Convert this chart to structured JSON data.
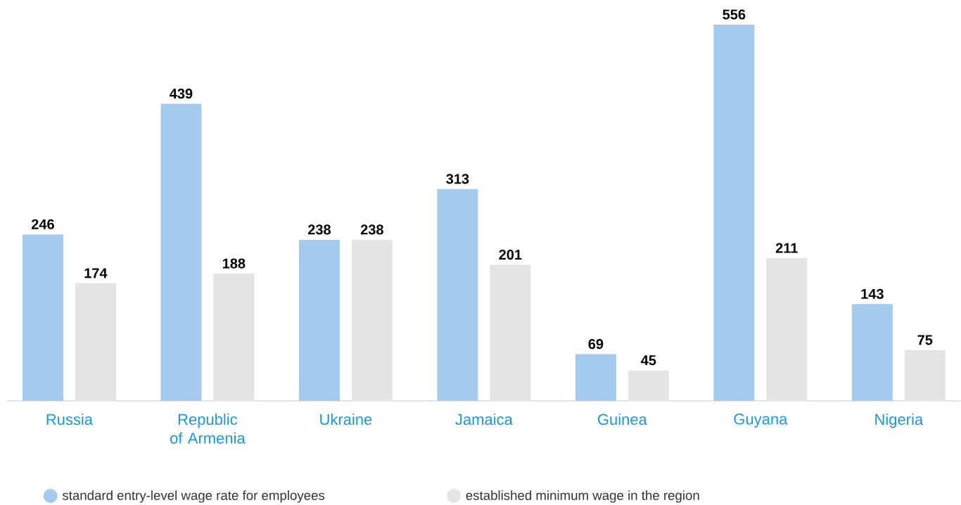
{
  "chart_data": {
    "type": "bar",
    "categories": [
      "Russia",
      "Republic of Armenia",
      "Ukraine",
      "Jamaica",
      "Guinea",
      "Guyana",
      "Nigeria"
    ],
    "series": [
      {
        "name": "standard entry-level wage rate for employees",
        "color": "#a4cbed",
        "values": [
          246,
          439,
          238,
          313,
          69,
          556,
          143
        ]
      },
      {
        "name": "established minimum wage in the region",
        "color": "#e4e4e4",
        "values": [
          174,
          188,
          238,
          201,
          45,
          211,
          75
        ]
      }
    ],
    "data_labels": true,
    "legend": "bottom"
  }
}
